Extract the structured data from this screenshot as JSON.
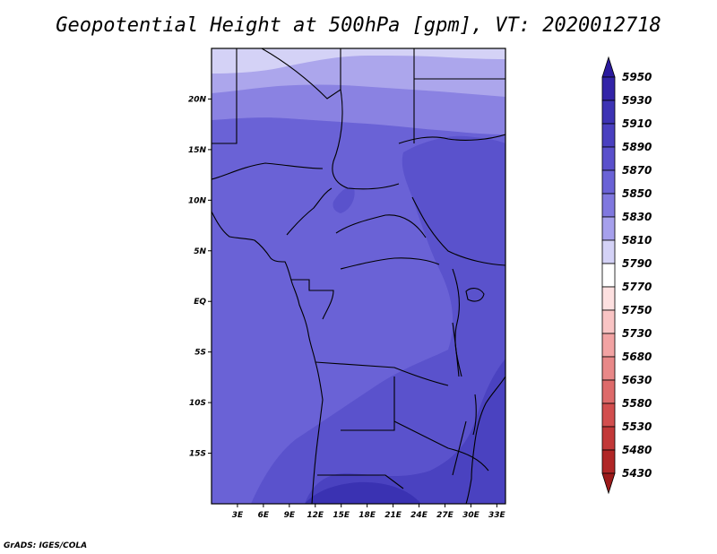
{
  "title": "Geopotential Height at 500hPa [gpm], VT: 2020012718",
  "credit": "GrADS: IGES/COLA",
  "map": {
    "lon_range": [
      0,
      34
    ],
    "lat_range": [
      -20,
      25
    ],
    "lat_ticks": [
      "20N",
      "15N",
      "10N",
      "5N",
      "EQ",
      "5S",
      "10S",
      "15S"
    ],
    "lat_tick_values": [
      20,
      15,
      10,
      5,
      0,
      -5,
      -10,
      -15
    ],
    "lon_ticks": [
      "3E",
      "6E",
      "9E",
      "12E",
      "15E",
      "18E",
      "21E",
      "24E",
      "27E",
      "30E",
      "33E"
    ],
    "lon_tick_values": [
      3,
      6,
      9,
      12,
      15,
      18,
      21,
      24,
      27,
      30,
      33
    ]
  },
  "colorbar": {
    "labels": [
      "5950",
      "5930",
      "5910",
      "5890",
      "5870",
      "5850",
      "5830",
      "5810",
      "5790",
      "5770",
      "5750",
      "5730",
      "5680",
      "5630",
      "5580",
      "5530",
      "5480",
      "5430"
    ],
    "colors": [
      "#2b1a9e",
      "#3324a8",
      "#3d33b4",
      "#4a40c0",
      "#5a50cc",
      "#6a62d6",
      "#8078df",
      "#a6a0ec",
      "#d4d2f6",
      "#ffffff",
      "#fde0e0",
      "#f9c4c4",
      "#f2a3a3",
      "#e88888",
      "#dd6a6a",
      "#d24e4e",
      "#c23838",
      "#b02626",
      "#9c1a1a"
    ]
  },
  "field_colors": {
    "c5810": "#d4d2f6",
    "c5830": "#aca6ec",
    "c5850": "#8a82e2",
    "c5870": "#6a62d6",
    "c5890": "#5a52cc",
    "c5910": "#4a42c0",
    "c5930": "#3a32b2"
  }
}
